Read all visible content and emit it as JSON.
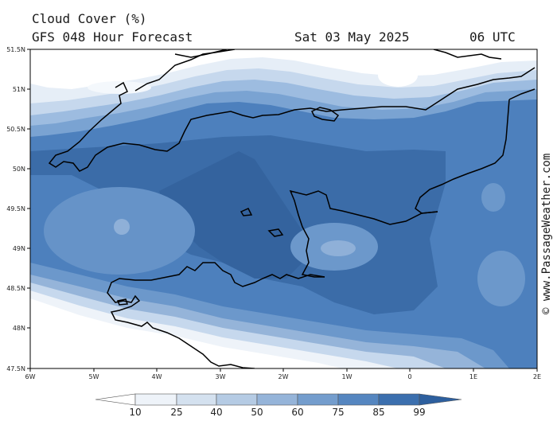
{
  "header": {
    "title": "Cloud Cover (%)",
    "subtitle": "GFS 048 Hour Forecast",
    "date": "Sat 03 May 2025",
    "time": "06 UTC"
  },
  "credit": "© www.PassageWeather.com",
  "map": {
    "variable": "Cloud Cover",
    "lat_range": [
      47.5,
      51.5
    ],
    "lon_range": [
      -6,
      2
    ],
    "lat_labels": [
      "51.5N",
      "51N",
      "50.5N",
      "50N",
      "49.5N",
      "49N",
      "48.5N",
      "48N",
      "47.5N"
    ],
    "lon_labels": [
      "6W",
      "5W",
      "4W",
      "3W",
      "2W",
      "1W",
      "0",
      "1E",
      "2E"
    ]
  },
  "colorbar": {
    "labels": [
      "10",
      "25",
      "40",
      "50",
      "60",
      "75",
      "85",
      "99"
    ],
    "colors": [
      "#ffffff",
      "#eef3f9",
      "#d4e1ef",
      "#b5cbe4",
      "#95b4d9",
      "#749dcd",
      "#5586c0",
      "#3b6fae",
      "#2d5f9e"
    ]
  }
}
